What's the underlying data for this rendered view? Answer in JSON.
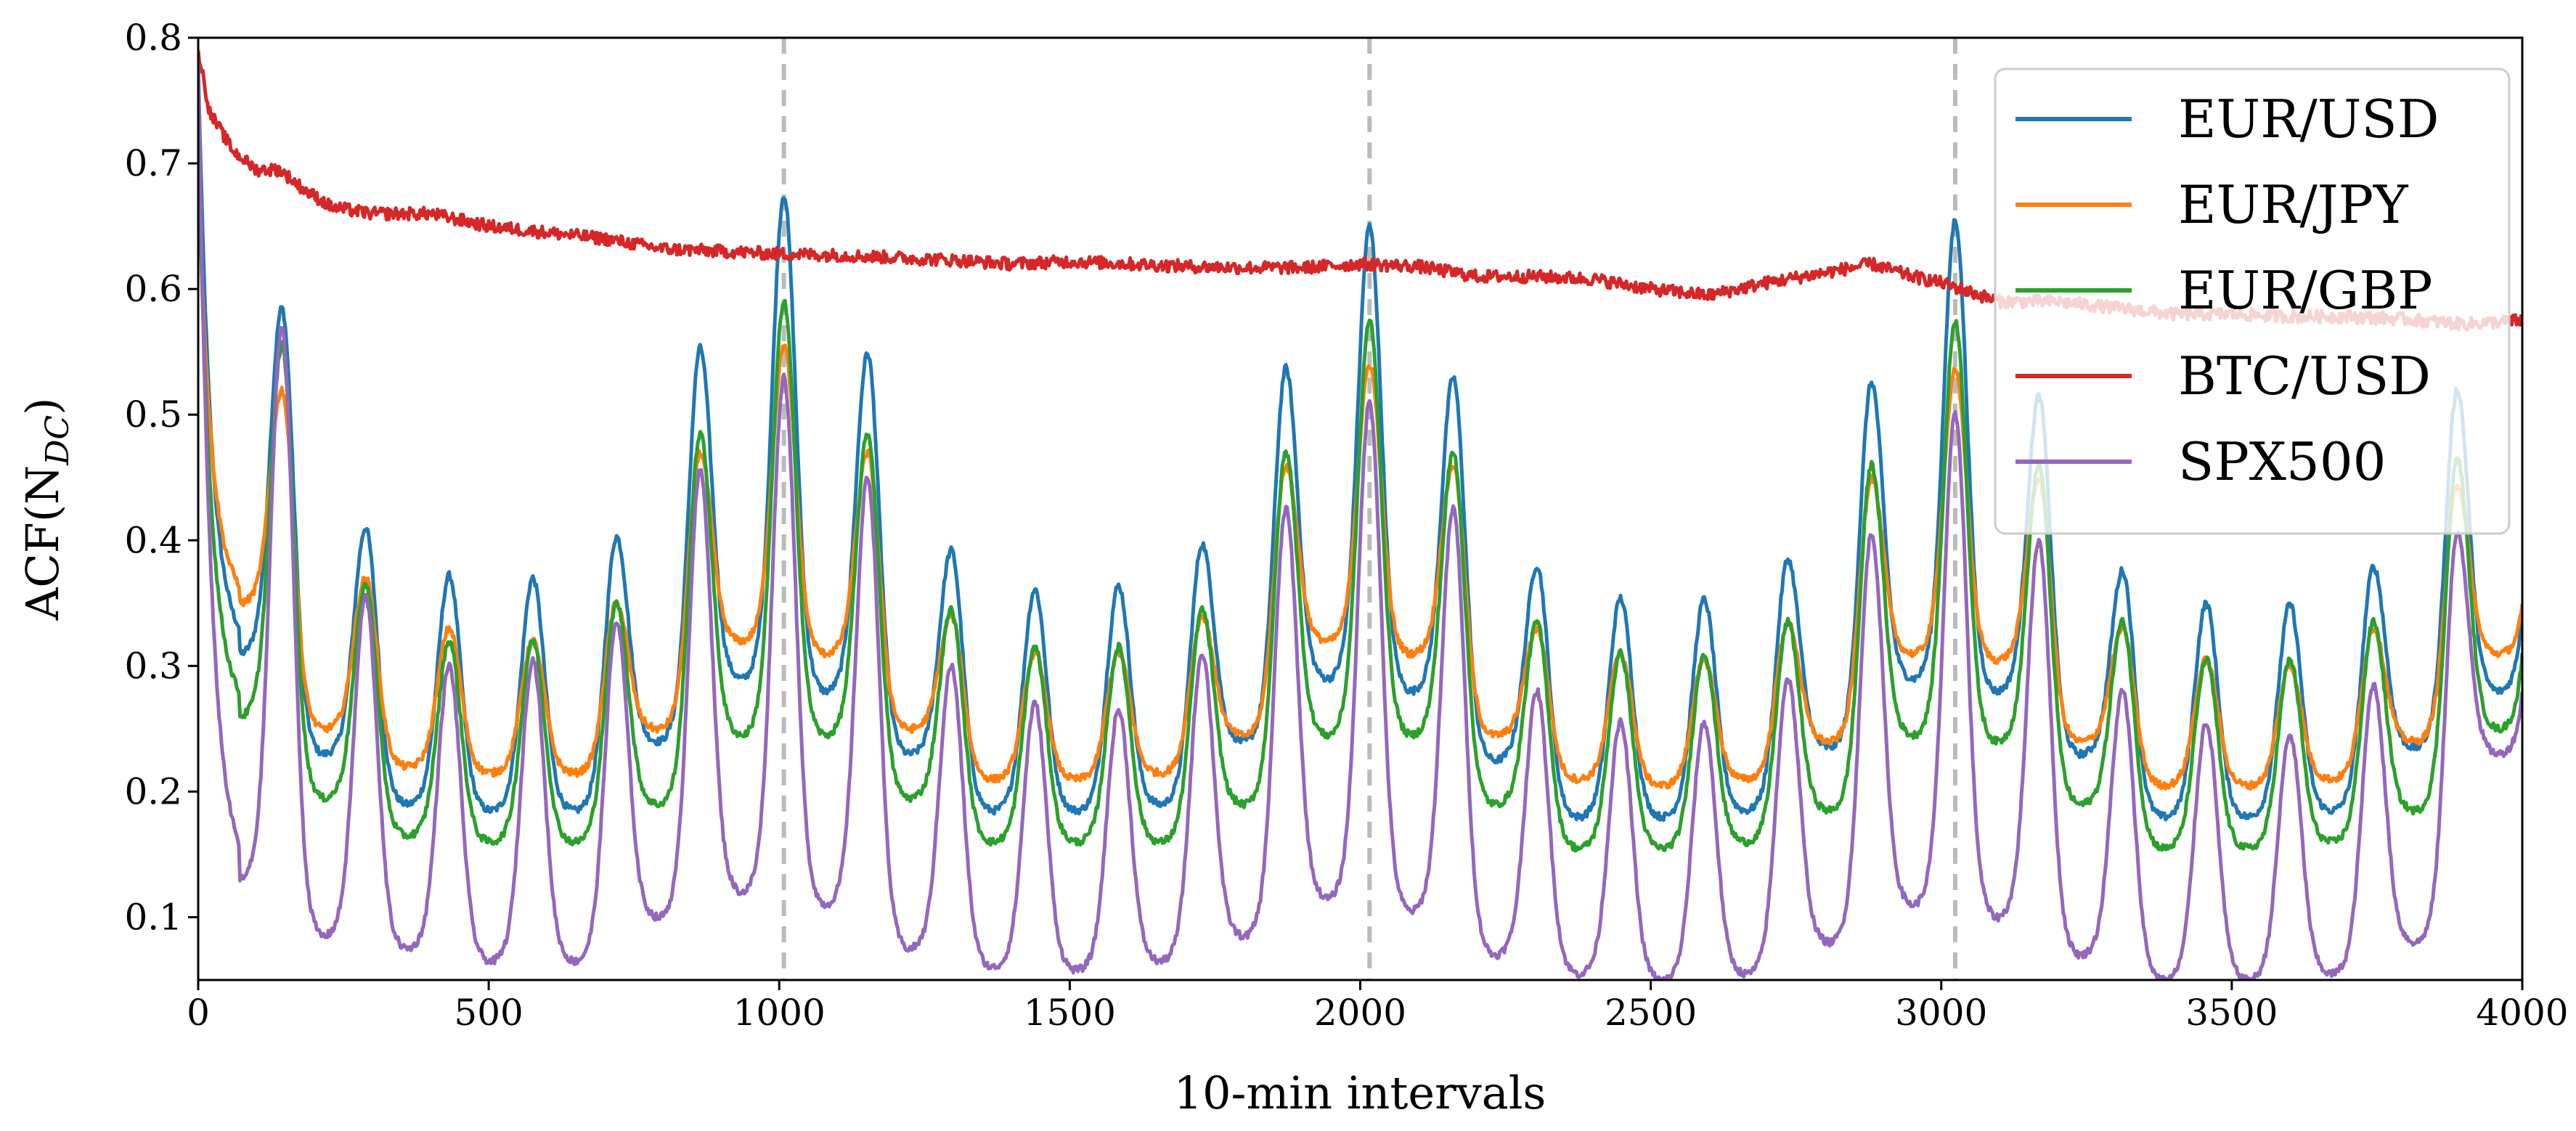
{
  "chart_data": {
    "type": "line",
    "title": "",
    "xlabel": "10-min intervals",
    "ylabel": "ACF(N",
    "ylabel_subscript": "DC",
    "ylabel_suffix": ")",
    "xlim": [
      0,
      4000
    ],
    "ylim": [
      0.05,
      0.8
    ],
    "xticks": [
      0,
      500,
      1000,
      1500,
      2000,
      2500,
      3000,
      3500,
      4000
    ],
    "xtick_labels": [
      "0",
      "500",
      "1000",
      "1500",
      "2000",
      "2500",
      "3000",
      "3500",
      "4000"
    ],
    "yticks": [
      0.1,
      0.2,
      0.3,
      0.4,
      0.5,
      0.6,
      0.7,
      0.8
    ],
    "ytick_labels": [
      "0.1",
      "0.2",
      "0.3",
      "0.4",
      "0.5",
      "0.6",
      "0.7",
      "0.8"
    ],
    "grid": false,
    "legend_position": "top-right",
    "annotations": {
      "vertical_dashed_lines_x": [
        1008,
        2016,
        3024
      ],
      "line_color": "#bbbbbb"
    },
    "periodicity": {
      "daily_period": 144,
      "weekly_period": 1008
    },
    "series": [
      {
        "name": "EUR/USD",
        "color": "#1f77b4",
        "start_value": 0.78,
        "daily_peaks": [
          0.585,
          0.41,
          0.372,
          0.37,
          0.403,
          0.553,
          0.675,
          0.549,
          0.392,
          0.361,
          0.364,
          0.397,
          0.537,
          0.65,
          0.53,
          0.38,
          0.354,
          0.353,
          0.385,
          0.526,
          0.655,
          0.515,
          0.376,
          0.35,
          0.349,
          0.379,
          0.52
        ],
        "daily_troughs": [
          0.31,
          0.23,
          0.19,
          0.185,
          0.185,
          0.24,
          0.29,
          0.28,
          0.23,
          0.185,
          0.185,
          0.19,
          0.24,
          0.29,
          0.28,
          0.225,
          0.18,
          0.18,
          0.185,
          0.235,
          0.29,
          0.28,
          0.23,
          0.18,
          0.18,
          0.185,
          0.235,
          0.28
        ]
      },
      {
        "name": "EUR/JPY",
        "color": "#ff7f0e",
        "start_value": 0.7,
        "daily_peaks": [
          0.52,
          0.37,
          0.33,
          0.32,
          0.35,
          0.47,
          0.555,
          0.47,
          0.34,
          0.31,
          0.31,
          0.34,
          0.46,
          0.54,
          0.46,
          0.33,
          0.31,
          0.305,
          0.335,
          0.45,
          0.535,
          0.45,
          0.33,
          0.305,
          0.3,
          0.33,
          0.445
        ],
        "daily_troughs": [
          0.35,
          0.25,
          0.22,
          0.215,
          0.215,
          0.25,
          0.32,
          0.31,
          0.25,
          0.21,
          0.21,
          0.215,
          0.245,
          0.32,
          0.31,
          0.245,
          0.21,
          0.205,
          0.21,
          0.24,
          0.31,
          0.305,
          0.24,
          0.205,
          0.205,
          0.21,
          0.24,
          0.31
        ]
      },
      {
        "name": "EUR/GBP",
        "color": "#2ca02c",
        "start_value": 0.72,
        "daily_peaks": [
          0.555,
          0.365,
          0.32,
          0.32,
          0.35,
          0.485,
          0.59,
          0.485,
          0.345,
          0.315,
          0.315,
          0.345,
          0.47,
          0.575,
          0.47,
          0.335,
          0.31,
          0.31,
          0.335,
          0.46,
          0.575,
          0.46,
          0.335,
          0.305,
          0.305,
          0.335,
          0.465
        ],
        "daily_troughs": [
          0.26,
          0.195,
          0.165,
          0.16,
          0.16,
          0.19,
          0.245,
          0.245,
          0.195,
          0.16,
          0.16,
          0.16,
          0.19,
          0.245,
          0.245,
          0.19,
          0.155,
          0.155,
          0.16,
          0.185,
          0.245,
          0.24,
          0.19,
          0.155,
          0.155,
          0.16,
          0.185,
          0.25
        ]
      },
      {
        "name": "BTC/USD",
        "color": "#d62728",
        "x": [
          0,
          20,
          60,
          100,
          140,
          180,
          230,
          300,
          400,
          500,
          600,
          700,
          800,
          900,
          1000,
          1100,
          1200,
          1300,
          1400,
          1500,
          1600,
          1700,
          1800,
          1900,
          2000,
          2100,
          2200,
          2300,
          2400,
          2500,
          2600,
          2700,
          2800,
          2880,
          2950,
          3000,
          3100,
          3200,
          3300,
          3400,
          3500,
          3600,
          3700,
          3800,
          3900,
          4000
        ],
        "values": [
          0.79,
          0.74,
          0.71,
          0.695,
          0.695,
          0.68,
          0.665,
          0.66,
          0.66,
          0.65,
          0.645,
          0.64,
          0.632,
          0.63,
          0.628,
          0.627,
          0.625,
          0.623,
          0.62,
          0.622,
          0.62,
          0.618,
          0.617,
          0.617,
          0.62,
          0.618,
          0.61,
          0.61,
          0.608,
          0.6,
          0.595,
          0.605,
          0.613,
          0.62,
          0.61,
          0.605,
          0.59,
          0.59,
          0.585,
          0.58,
          0.58,
          0.578,
          0.578,
          0.576,
          0.572,
          0.575
        ]
      },
      {
        "name": "SPX500",
        "color": "#9467bd",
        "start_value": 0.78,
        "daily_peaks": [
          0.57,
          0.355,
          0.3,
          0.305,
          0.335,
          0.455,
          0.53,
          0.45,
          0.3,
          0.27,
          0.265,
          0.31,
          0.425,
          0.51,
          0.425,
          0.28,
          0.255,
          0.255,
          0.29,
          0.405,
          0.5,
          0.4,
          0.28,
          0.255,
          0.245,
          0.285,
          0.405
        ],
        "daily_troughs": [
          0.13,
          0.085,
          0.075,
          0.065,
          0.065,
          0.1,
          0.12,
          0.11,
          0.075,
          0.06,
          0.058,
          0.065,
          0.085,
          0.115,
          0.105,
          0.07,
          0.055,
          0.05,
          0.055,
          0.08,
          0.11,
          0.1,
          0.07,
          0.05,
          0.05,
          0.055,
          0.08,
          0.23
        ]
      }
    ]
  }
}
